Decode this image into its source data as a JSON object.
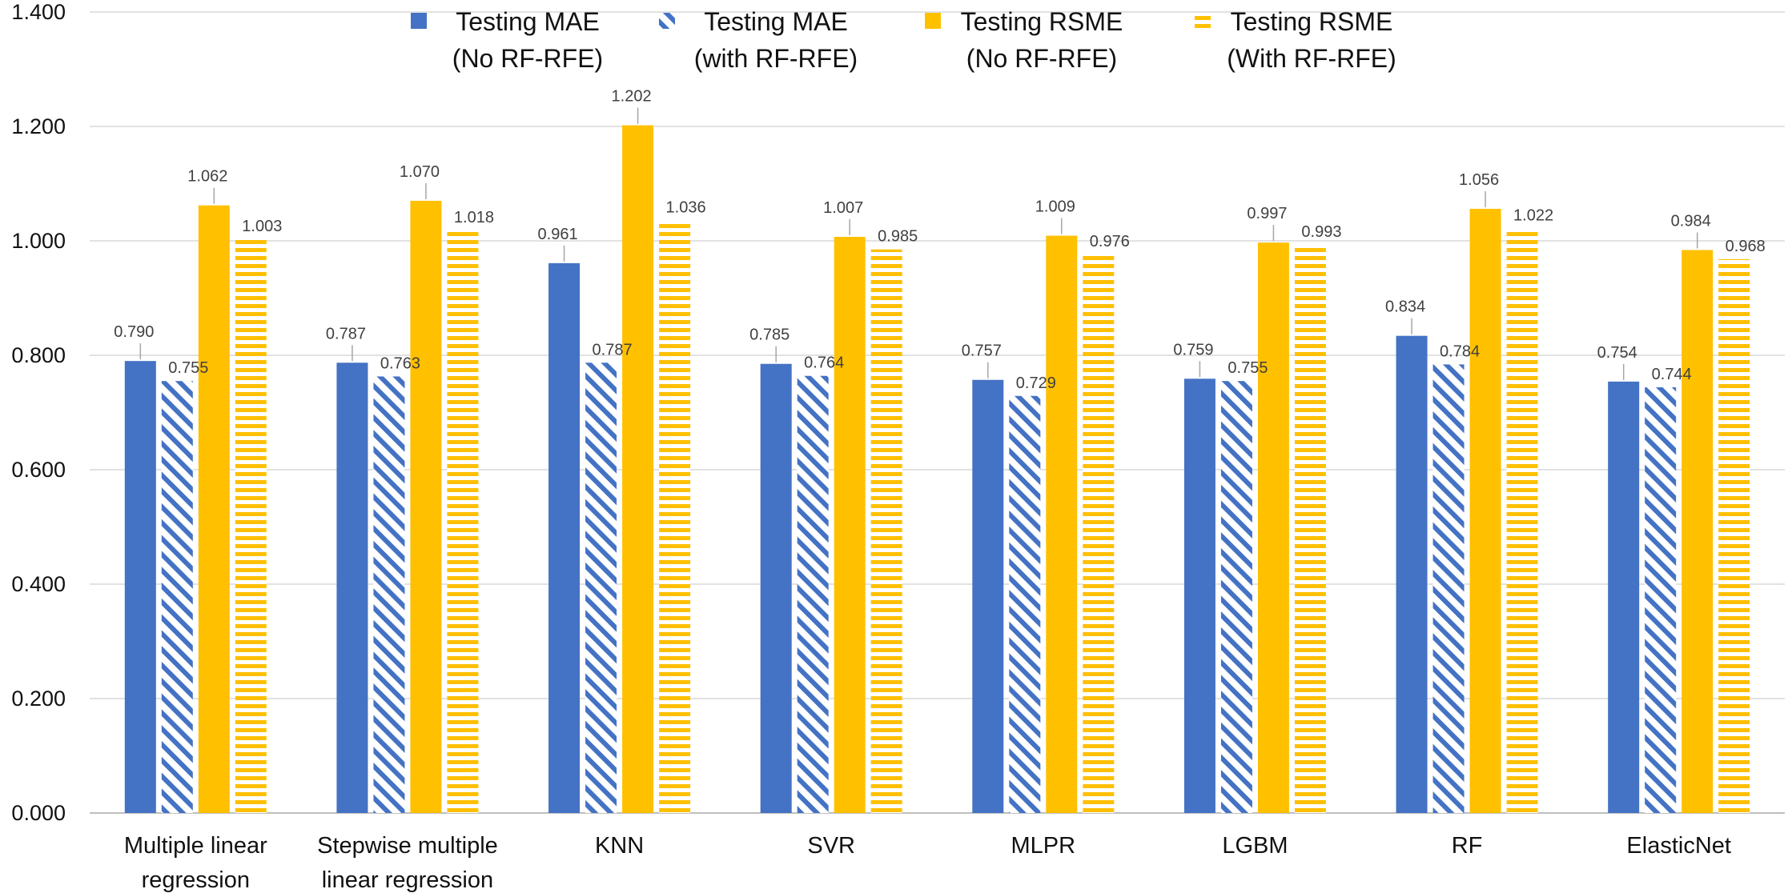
{
  "chart_data": {
    "type": "bar",
    "title": "",
    "xlabel": "",
    "ylabel": "",
    "ylim": [
      0,
      1.4
    ],
    "yticks": [
      0,
      0.2,
      0.4,
      0.6,
      0.8,
      1.0,
      1.2,
      1.4
    ],
    "ytick_labels": [
      "0.000",
      "0.200",
      "0.400",
      "0.600",
      "0.800",
      "1.000",
      "1.200",
      "1.400"
    ],
    "grid": true,
    "legend_position": "top",
    "categories": [
      [
        "Multiple linear",
        "regression"
      ],
      [
        "Stepwise multiple",
        "linear regression"
      ],
      [
        "KNN"
      ],
      [
        "SVR"
      ],
      [
        "MLPR"
      ],
      [
        "LGBM"
      ],
      [
        "RF"
      ],
      [
        "ElasticNet"
      ]
    ],
    "series": [
      {
        "name": [
          "Testing MAE",
          "(No RF-RFE)"
        ],
        "color": "#4472C4",
        "pattern": "solid",
        "values": [
          0.79,
          0.787,
          0.961,
          0.785,
          0.757,
          0.759,
          0.834,
          0.754
        ],
        "labels": [
          "0.790",
          "0.787",
          "0.961",
          "0.785",
          "0.757",
          "0.759",
          "0.834",
          "0.754"
        ]
      },
      {
        "name": [
          "Testing MAE",
          "(with RF-RFE)"
        ],
        "color": "#4472C4",
        "pattern": "diagonal-stripes",
        "values": [
          0.755,
          0.763,
          0.787,
          0.764,
          0.729,
          0.755,
          0.784,
          0.744
        ],
        "labels": [
          "0.755",
          "0.763",
          "0.787",
          "0.764",
          "0.729",
          "0.755",
          "0.784",
          "0.744"
        ]
      },
      {
        "name": [
          "Testing RSME",
          "(No RF-RFE)"
        ],
        "color": "#FFC000",
        "pattern": "solid",
        "values": [
          1.062,
          1.07,
          1.202,
          1.007,
          1.009,
          0.997,
          1.056,
          0.984
        ],
        "labels": [
          "1.062",
          "1.070",
          "1.202",
          "1.007",
          "1.009",
          "0.997",
          "1.056",
          "0.984"
        ]
      },
      {
        "name": [
          "Testing RSME",
          "(With RF-RFE)"
        ],
        "color": "#FFC000",
        "pattern": "horizontal-stripes",
        "values": [
          1.003,
          1.018,
          1.036,
          0.985,
          0.976,
          0.993,
          1.022,
          0.968
        ],
        "labels": [
          "1.003",
          "1.018",
          "1.036",
          "0.985",
          "0.976",
          "0.993",
          "1.022",
          "0.968"
        ]
      }
    ],
    "colors": {
      "grid": "#D9D9D9",
      "axis": "#BFBFBF",
      "leader": "#A6A6A6",
      "text": "#111111",
      "data_label": "#404040"
    }
  }
}
